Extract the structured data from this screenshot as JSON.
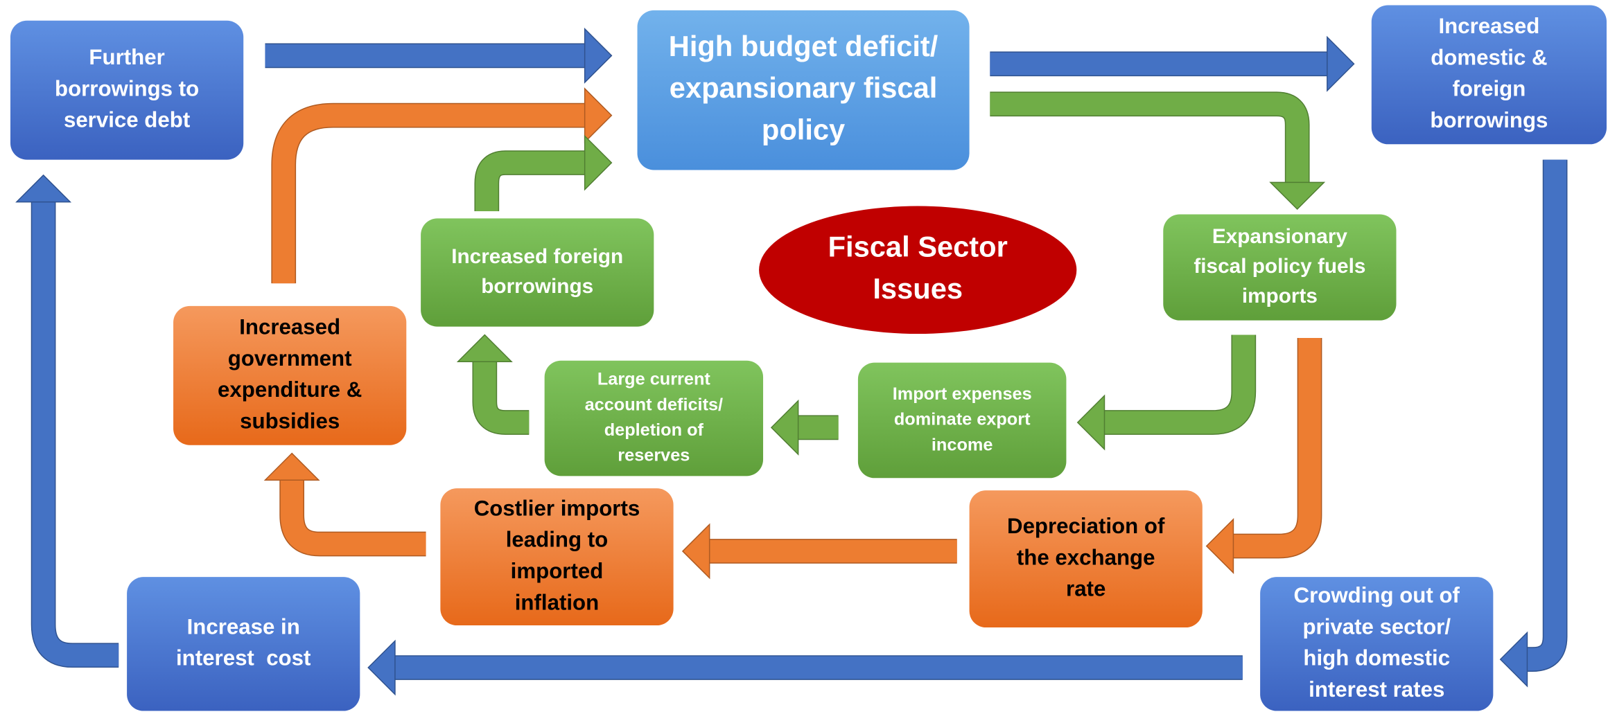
{
  "title": null,
  "nodes": [
    {
      "lines": [
        "Further",
        "borrowings to",
        "service debt"
      ]
    },
    {
      "lines": [
        "High budget deficit/",
        "expansionary fiscal",
        "policy"
      ]
    },
    {
      "lines": [
        "Increased",
        "domestic &",
        "foreign",
        "borrowings"
      ]
    },
    {
      "lines": [
        "Expansionary",
        "fiscal policy fuels",
        "imports"
      ]
    },
    {
      "lines": [
        "Fiscal Sector",
        "Issues"
      ]
    },
    {
      "lines": [
        "Increased foreign",
        "borrowings"
      ]
    },
    {
      "lines": [
        "Increased",
        "government",
        "expenditure &",
        "subsidies"
      ]
    },
    {
      "lines": [
        "Large current",
        "account deficits/",
        "depletion of",
        "reserves"
      ]
    },
    {
      "lines": [
        "Import expenses",
        "dominate export",
        "income"
      ]
    },
    {
      "lines": [
        "Costlier imports",
        "leading to",
        "imported",
        "inflation"
      ]
    },
    {
      "lines": [
        "Depreciation of",
        "the exchange",
        "rate"
      ]
    },
    {
      "lines": [
        "Increase in",
        "interest  cost"
      ]
    },
    {
      "lines": [
        "Crowding out of",
        "private sector/",
        "high domestic",
        "interest rates"
      ]
    }
  ]
}
